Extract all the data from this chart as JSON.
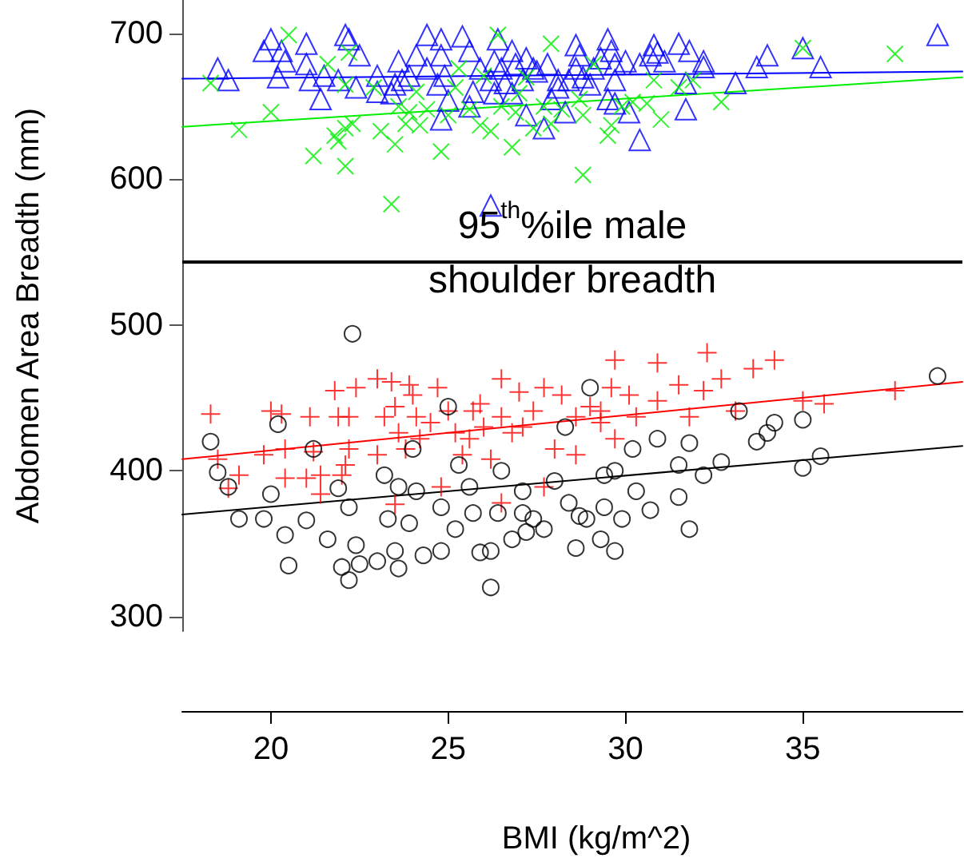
{
  "chart_data": {
    "type": "scatter",
    "xlabel": "BMI (kg/m^2)",
    "ylabel": "Abdomen Area Breadth (mm)",
    "xlim": [
      17.5,
      39.5
    ],
    "xticks": [
      20,
      25,
      30,
      35
    ],
    "ylim": [
      290,
      723
    ],
    "yticks": [
      300,
      400,
      500,
      600,
      700
    ],
    "ref_lines": [
      {
        "axis": "y",
        "value": 544,
        "label": "95$^{th}$%ile male\nshoulder breadth",
        "color": "#000000"
      }
    ],
    "series": [
      {
        "type": "scatter",
        "marker": "triangle",
        "color": "#0000ff",
        "x": [
          18.5,
          18.8,
          20.0,
          19.8,
          20.3,
          20.4,
          20.2,
          21.0,
          21.0,
          21.1,
          21.4,
          21.5,
          22.1,
          22.2,
          22.5,
          22.4,
          21.9,
          23.0,
          23.0,
          23.6,
          23.7,
          24.1,
          24.4,
          24.8,
          24.8,
          24.9,
          25.0,
          24.8,
          25.4,
          25.6,
          25.7,
          25.9,
          25.6,
          26.4,
          26.3,
          26.5,
          26.2,
          26.3,
          26.8,
          26.9,
          27.2,
          27.4,
          27.1,
          26.8,
          27.2,
          27.7,
          27.5,
          27.8,
          28.1,
          27.9,
          28.3,
          28.6,
          28.7,
          28.6,
          28.8,
          28.4,
          29.1,
          29.5,
          29.6,
          29.7,
          29.3,
          29.7,
          29.5,
          29.7,
          30.1,
          30.4,
          30.0,
          30.4,
          30.8,
          30.9,
          30.7,
          31.1,
          31.5,
          31.8,
          32.2,
          32.2,
          31.7,
          31.7,
          33.1,
          33.7,
          34.0,
          35.0,
          35.5,
          38.8,
          26.2,
          23.5,
          23.4,
          23.9,
          24.4,
          24.7,
          26.6,
          28.1,
          29.0
        ],
        "values": [
          676,
          668,
          696,
          688,
          688,
          681,
          670,
          693,
          679,
          668,
          655,
          671,
          699,
          696,
          685,
          663,
          668,
          671,
          660,
          681,
          668,
          685,
          699,
          696,
          685,
          671,
          654,
          641,
          698,
          688,
          660,
          676,
          650,
          696,
          681,
          676,
          668,
          659,
          688,
          679,
          683,
          676,
          668,
          659,
          644,
          635,
          674,
          679,
          668,
          655,
          646,
          692,
          685,
          676,
          670,
          668,
          676,
          696,
          688,
          679,
          683,
          668,
          655,
          652,
          646,
          627,
          681,
          679,
          692,
          687,
          685,
          681,
          693,
          688,
          681,
          677,
          666,
          648,
          666,
          677,
          685,
          690,
          677,
          699,
          582,
          665,
          659,
          671,
          676,
          665,
          666,
          663,
          665
        ]
      },
      {
        "type": "scatter",
        "marker": "x",
        "color": "#00ee00",
        "x": [
          18.3,
          19.1,
          20.0,
          20.5,
          21.2,
          21.6,
          21.8,
          21.9,
          22.1,
          22.3,
          22.1,
          22.1,
          22.2,
          22.9,
          23.1,
          23.5,
          23.4,
          23.6,
          23.9,
          23.8,
          24.2,
          24.4,
          24.8,
          25.0,
          25.2,
          25.3,
          25.6,
          25.9,
          26.2,
          26.4,
          26.5,
          26.8,
          26.9,
          27.0,
          27.4,
          27.7,
          27.9,
          27.9,
          28.2,
          28.7,
          28.8,
          28.8,
          29.1,
          29.5,
          29.6,
          29.9,
          30.2,
          30.6,
          30.8,
          31.0,
          31.5,
          31.9,
          32.7,
          35.0,
          37.6,
          24.1,
          26.0,
          27.2
        ],
        "values": [
          666,
          634,
          646,
          699,
          616,
          679,
          630,
          626,
          635,
          638,
          609,
          665,
          687,
          663,
          633,
          624,
          583,
          650,
          646,
          638,
          637,
          648,
          619,
          644,
          663,
          676,
          648,
          637,
          633,
          699,
          650,
          622,
          646,
          659,
          635,
          650,
          693,
          638,
          648,
          655,
          644,
          603,
          679,
          630,
          637,
          650,
          653,
          652,
          668,
          641,
          663,
          668,
          653,
          690,
          686,
          660,
          671,
          670
        ]
      },
      {
        "type": "scatter",
        "marker": "cross",
        "color": "#ff0000",
        "x": [
          18.3,
          18.5,
          18.8,
          19.1,
          19.8,
          20.0,
          20.3,
          20.4,
          20.4,
          21.0,
          21.1,
          21.2,
          21.4,
          21.4,
          21.8,
          21.9,
          22.1,
          22.2,
          22.4,
          22.2,
          23.0,
          23.0,
          23.2,
          23.4,
          23.5,
          23.6,
          23.8,
          23.9,
          24.0,
          24.1,
          24.2,
          24.5,
          24.7,
          24.8,
          25.0,
          25.2,
          25.4,
          25.7,
          26.0,
          26.2,
          26.5,
          26.5,
          26.5,
          26.8,
          27.0,
          27.4,
          27.7,
          27.7,
          28.0,
          28.2,
          28.6,
          28.6,
          29.0,
          29.3,
          29.6,
          29.7,
          29.7,
          30.1,
          30.3,
          30.9,
          30.9,
          31.5,
          31.8,
          32.2,
          32.3,
          32.7,
          33.1,
          33.6,
          34.2,
          35.0,
          35.6,
          37.6,
          25.6,
          27.1,
          29.3,
          25.9,
          23.5,
          22.0
        ],
        "values": [
          439,
          408,
          388,
          397,
          411,
          441,
          439,
          415,
          395,
          395,
          437,
          413,
          397,
          384,
          455,
          437,
          404,
          415,
          457,
          437,
          463,
          411,
          437,
          461,
          377,
          426,
          415,
          459,
          452,
          437,
          422,
          433,
          457,
          389,
          441,
          426,
          411,
          441,
          430,
          408,
          463,
          378,
          437,
          426,
          454,
          441,
          389,
          457,
          415,
          452,
          411,
          437,
          444,
          433,
          457,
          476,
          422,
          452,
          437,
          474,
          448,
          459,
          437,
          455,
          481,
          463,
          441,
          470,
          476,
          448,
          446,
          455,
          422,
          430,
          441,
          446,
          444,
          397
        ]
      },
      {
        "type": "scatter",
        "marker": "circle",
        "color": "#000000",
        "x": [
          18.3,
          18.5,
          18.8,
          19.1,
          19.8,
          20.0,
          20.2,
          20.4,
          20.5,
          21.0,
          21.2,
          21.6,
          21.9,
          22.0,
          22.2,
          22.3,
          22.4,
          22.5,
          22.2,
          23.0,
          23.3,
          23.5,
          23.6,
          23.6,
          23.9,
          24.0,
          24.3,
          24.8,
          24.8,
          25.0,
          25.2,
          25.7,
          25.9,
          26.2,
          26.2,
          26.4,
          26.5,
          26.8,
          27.1,
          27.2,
          27.4,
          27.7,
          28.0,
          28.3,
          28.4,
          28.6,
          28.7,
          29.0,
          29.3,
          29.4,
          29.7,
          29.7,
          29.9,
          30.2,
          30.3,
          30.7,
          30.9,
          31.5,
          31.5,
          31.8,
          31.8,
          32.2,
          32.7,
          33.2,
          33.7,
          34.0,
          34.2,
          35.0,
          35.0,
          35.5,
          38.8,
          24.1,
          25.3,
          27.1,
          28.9,
          29.4,
          25.6,
          23.2
        ],
        "values": [
          420,
          399,
          389,
          367,
          367,
          384,
          432,
          356,
          335,
          366,
          415,
          353,
          388,
          334,
          325,
          494,
          349,
          336,
          375,
          338,
          367,
          345,
          333,
          389,
          364,
          415,
          342,
          345,
          375,
          444,
          360,
          371,
          344,
          345,
          320,
          371,
          400,
          353,
          386,
          358,
          367,
          360,
          393,
          430,
          378,
          347,
          369,
          457,
          353,
          375,
          400,
          345,
          367,
          415,
          386,
          373,
          422,
          382,
          404,
          360,
          419,
          397,
          406,
          441,
          420,
          426,
          433,
          435,
          402,
          410,
          465,
          386,
          404,
          371,
          367,
          397,
          389,
          397
        ]
      },
      {
        "type": "line",
        "marker": "none",
        "color": "#0000ff",
        "x": [
          17.5,
          39.5
        ],
        "values": [
          669,
          674
        ]
      },
      {
        "type": "line",
        "marker": "none",
        "color": "#00ee00",
        "x": [
          17.5,
          39.5
        ],
        "values": [
          636,
          670
        ]
      },
      {
        "type": "line",
        "marker": "none",
        "color": "#ff0000",
        "x": [
          17.5,
          39.5
        ],
        "values": [
          408,
          461
        ]
      },
      {
        "type": "line",
        "marker": "none",
        "color": "#000000",
        "x": [
          17.5,
          39.5
        ],
        "values": [
          370,
          417
        ]
      }
    ]
  }
}
